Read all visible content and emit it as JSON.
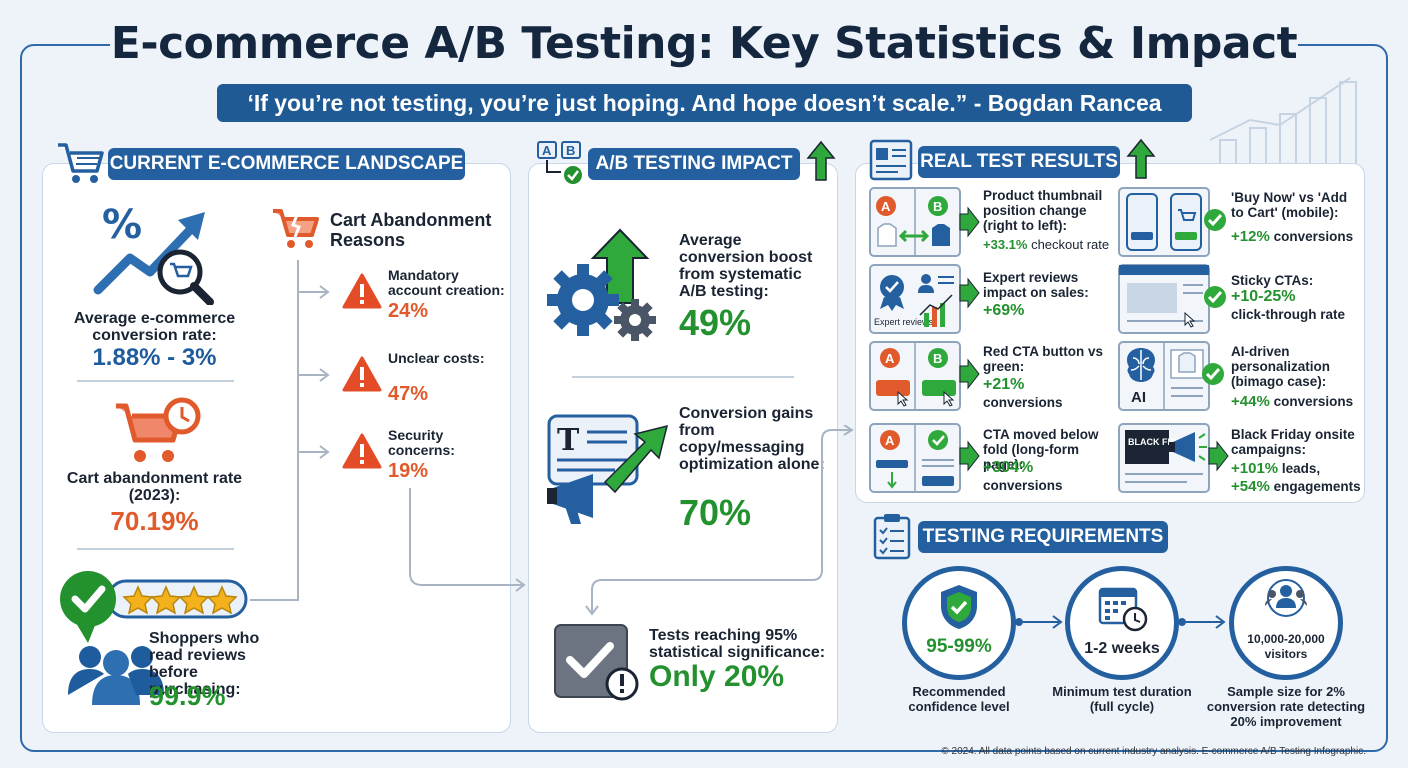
{
  "header": {
    "title": "E-commerce A/B Testing: Key Statistics & Impact",
    "quote": "‘If you’re not testing, you’re just hoping. And hope doesn’t scale.” - Bogdan Rancea"
  },
  "landscape": {
    "heading": "CURRENT E-COMMERCE LANDSCAPE",
    "conversion_label": "Average e-commerce conversion rate:",
    "conversion_value": "1.88% - 3%",
    "abandon_label": "Cart abandonment rate (2023):",
    "abandon_value": "70.19%",
    "reviews_label": "Shoppers who read reviews before purchasing:",
    "reviews_value": "99.9%",
    "reasons_title": "Cart Abandonment Reasons",
    "reasons": [
      {
        "label": "Mandatory account creation:",
        "value": "24%"
      },
      {
        "label": "Unclear costs:",
        "value": "47%"
      },
      {
        "label": "Security concerns:",
        "value": "19%"
      }
    ]
  },
  "impact": {
    "heading": "A/B TESTING IMPACT",
    "ab_a": "A",
    "ab_b": "B",
    "boost_label": "Average conversion boost from systematic A/B testing:",
    "boost_value": "49%",
    "copy_label": "Conversion gains from copy/messaging optimization alone:",
    "copy_value": "70%",
    "doc_letter": "T",
    "sig_label": "Tests reaching 95% statistical significance:",
    "sig_value": "Only 20%"
  },
  "results": {
    "heading": "REAL TEST RESULTS",
    "items": [
      {
        "label": "Product thumbnail position change (right to left):",
        "value": "+33.1%",
        "suffix": "checkout rate"
      },
      {
        "label": "Expert reviews impact on sales:",
        "value": "+69%",
        "suffix": ""
      },
      {
        "label": "Red CTA button vs green:",
        "value": "+21%",
        "suffix": "conversions"
      },
      {
        "label": "CTA moved below fold (long-form page):",
        "value": "+304%",
        "suffix": "conversions"
      },
      {
        "label": "'Buy Now' vs 'Add to Cart' (mobile):",
        "value": "+12%",
        "suffix": "conversions"
      },
      {
        "label": "Sticky CTAs:",
        "value": "+10-25%",
        "suffix": "click-through rate"
      },
      {
        "label": "AI-driven personalization (bimago case):",
        "value": "+44%",
        "suffix": "conversions"
      },
      {
        "label": "Black Friday onsite campaigns:",
        "value": "+101%",
        "suffix": "leads,",
        "value2": "+54%",
        "suffix2": "engagements"
      }
    ],
    "expert_text": "Expert reviews",
    "ai_text": "AI",
    "bf_text": "BLACK FRIDAY"
  },
  "requirements": {
    "heading": "TESTING REQUIREMENTS",
    "items": [
      {
        "value": "95-99%",
        "label": "Recommended confidence level"
      },
      {
        "value": "1-2 weeks",
        "label": "Minimum test duration (full cycle)"
      },
      {
        "value": "10,000-20,000 visitors",
        "label": "Sample size for 2% conversion rate detecting 20% improvement"
      }
    ]
  },
  "footer": "© 2024. All data points based on current industry analysis. E-commerce A/B Testing Infographic.",
  "colors": {
    "navy": "#2460a0",
    "green": "#23912e",
    "red": "#e05a2b",
    "blue": "#1e5c9d"
  }
}
